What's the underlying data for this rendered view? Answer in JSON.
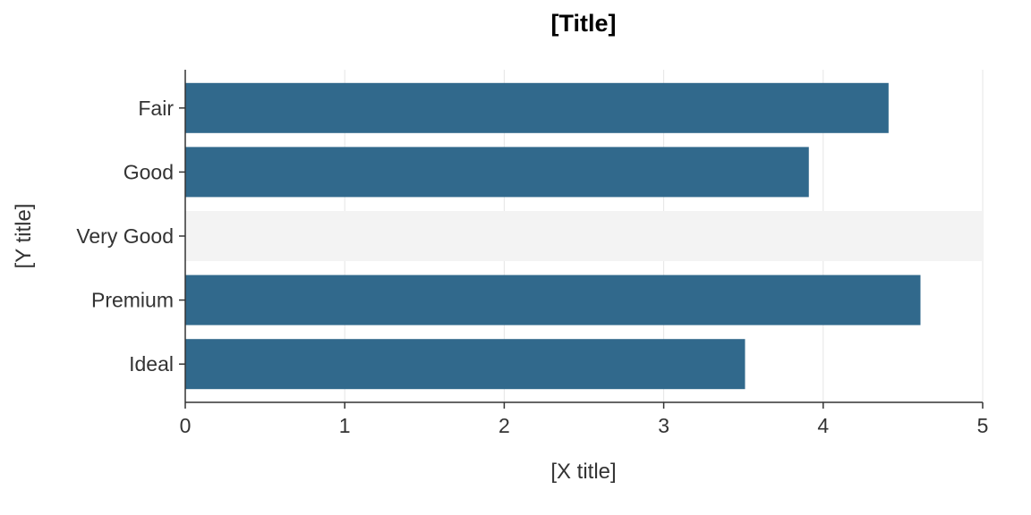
{
  "chart_data": {
    "type": "bar",
    "orientation": "horizontal",
    "title": "[Title]",
    "xlabel": "[X title]",
    "ylabel": "[Y title]",
    "categories": [
      "Fair",
      "Good",
      "Very Good",
      "Premium",
      "Ideal"
    ],
    "values": [
      4.41,
      3.91,
      5.0,
      4.61,
      3.51
    ],
    "highlighted": [
      false,
      false,
      true,
      false,
      false
    ],
    "xlim": [
      0,
      5
    ],
    "xticks": [
      0,
      1,
      2,
      3,
      4,
      5
    ],
    "grid": "vertical",
    "legend": "none",
    "colors": {
      "bar": "#31698c",
      "highlight_bar": "#f3f3f3",
      "grid": "#e5e5e5",
      "axis": "#333333"
    }
  }
}
